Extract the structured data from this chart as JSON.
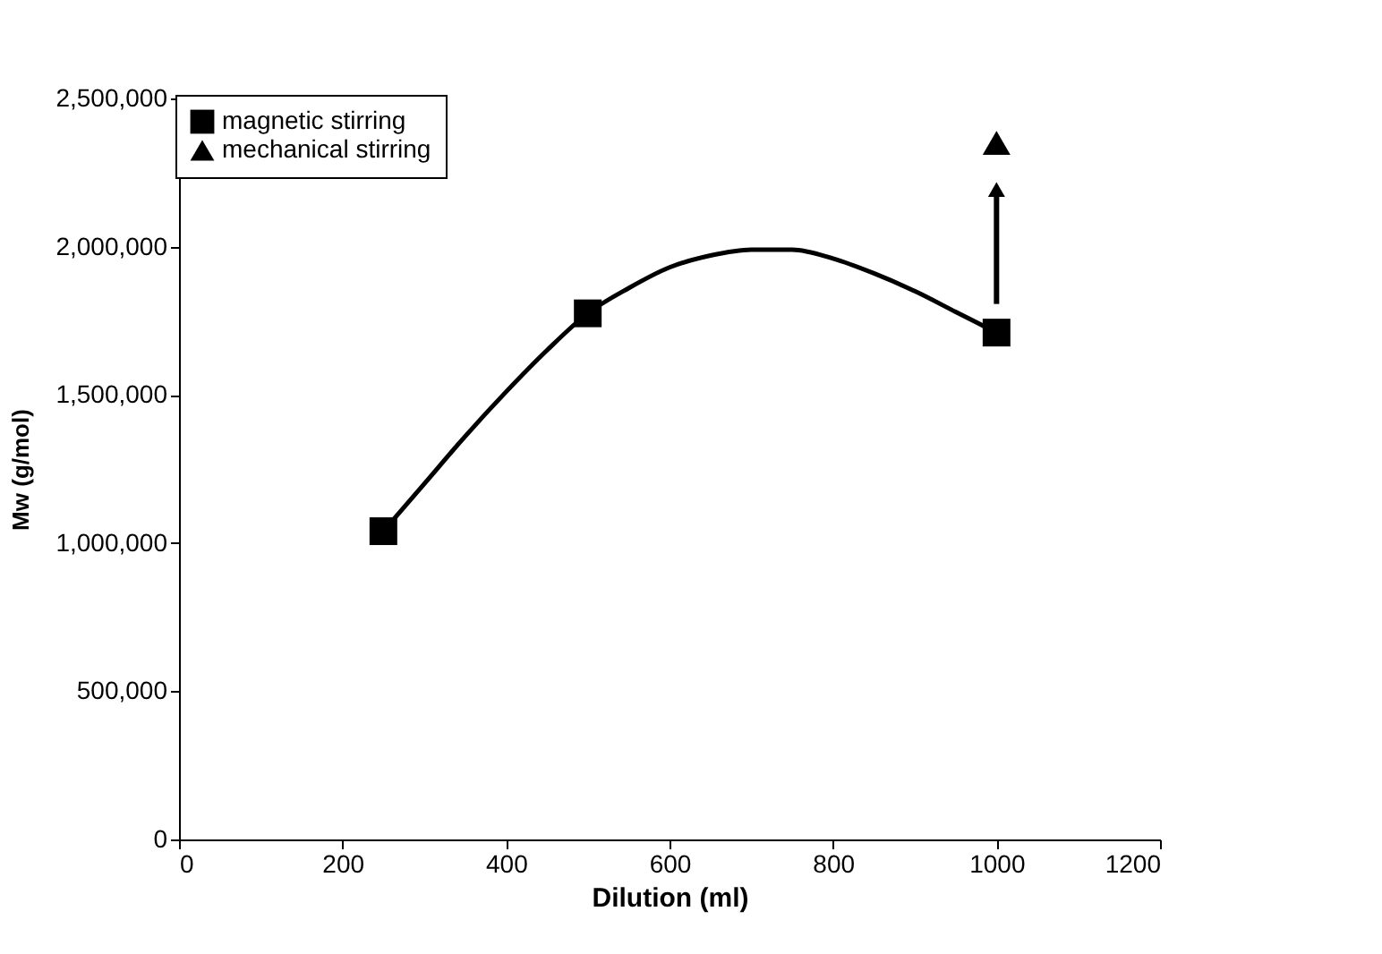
{
  "chart_data": {
    "type": "scatter",
    "xlabel": "Dilution (ml)",
    "ylabel": "Mw (g/mol)",
    "xlim": [
      0,
      1200
    ],
    "xticks": [
      0,
      200,
      400,
      600,
      800,
      1000,
      1200
    ],
    "ylim": [
      0,
      2500000
    ],
    "yticks": [
      {
        "value": 0,
        "label": "0"
      },
      {
        "value": 500000,
        "label": "500,000"
      },
      {
        "value": 1000000,
        "label": "1,000,000"
      },
      {
        "value": 1500000,
        "label": "1,500,000"
      },
      {
        "value": 2000000,
        "label": "2,000,000"
      },
      {
        "value": 2500000,
        "label": "2,500,000"
      }
    ],
    "grid": false,
    "legend": "top left",
    "series": [
      {
        "type": "line",
        "color": "#000000",
        "marker": "none",
        "line_style": "solid",
        "x": [
          250,
          300,
          350,
          400,
          450,
          500,
          550,
          600,
          650,
          700,
          750,
          800,
          850,
          900,
          950,
          1000
        ],
        "values": [
          1040000,
          1200000,
          1360000,
          1510000,
          1650000,
          1775000,
          1860000,
          1930000,
          1970000,
          1990000,
          1990000,
          1960000,
          1910000,
          1850000,
          1780000,
          1710000
        ]
      },
      {
        "name": "magnetic stirring",
        "color": "#000000",
        "marker": "square",
        "x": [
          250,
          500,
          1000
        ],
        "values": [
          1040000,
          1775000,
          1710000
        ]
      },
      {
        "name": "mechanical stirring",
        "color": "#000000",
        "marker": "triangle",
        "x": [
          1000
        ],
        "values": [
          2350000
        ]
      }
    ]
  }
}
